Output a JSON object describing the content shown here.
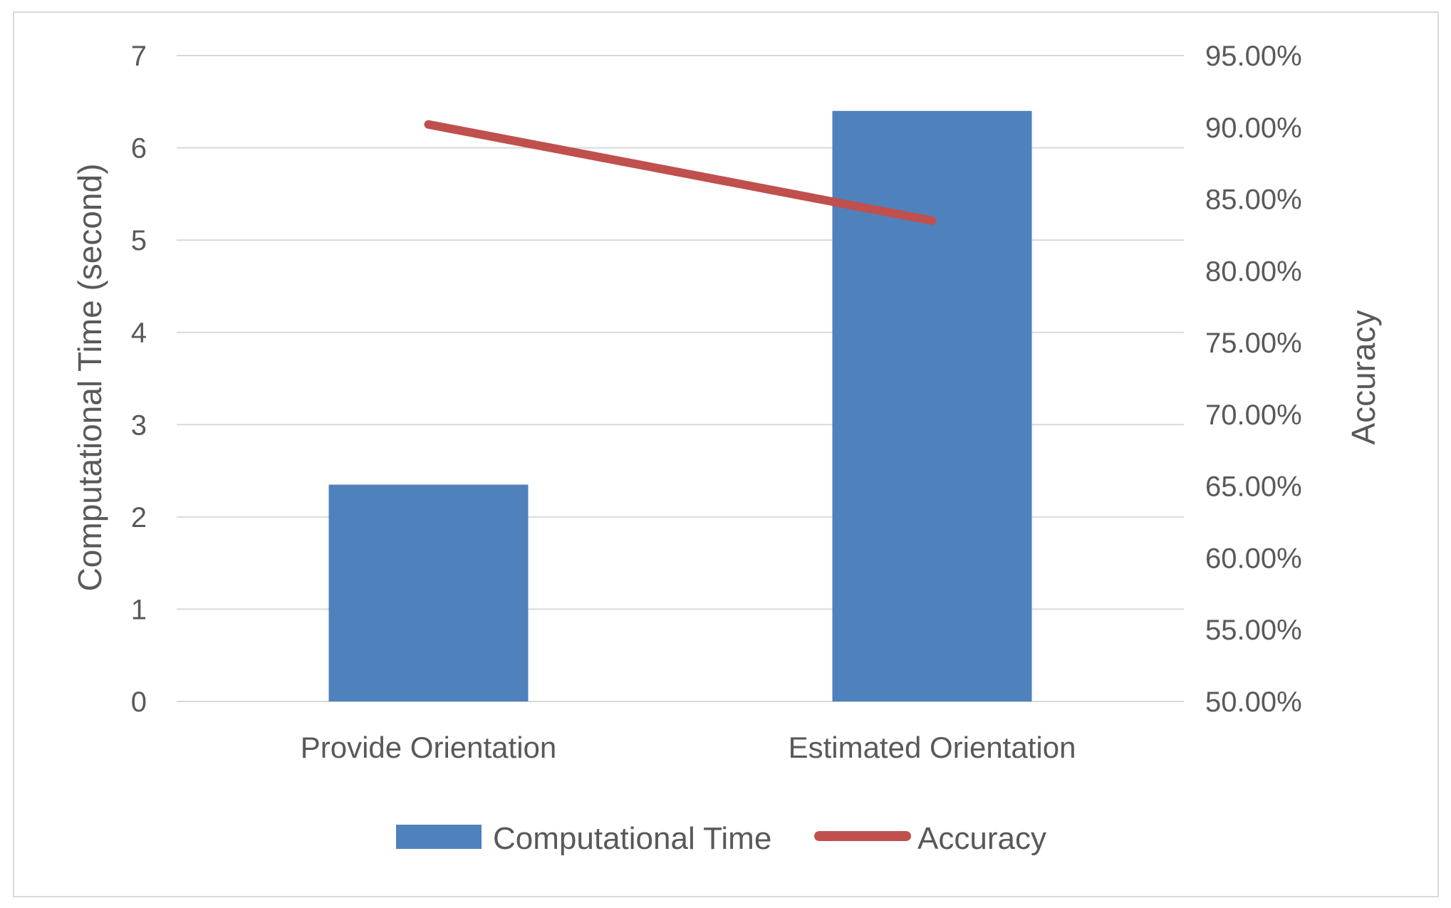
{
  "chart_data": {
    "type": "bar",
    "categories": [
      "Provide Orientation",
      "Estimated Orientation"
    ],
    "series": [
      {
        "name": "Computational Time",
        "type": "bar",
        "axis": "left",
        "values": [
          2.35,
          6.4
        ],
        "color": "#4f81bd"
      },
      {
        "name": "Accuracy",
        "type": "line",
        "axis": "right",
        "values": [
          0.902,
          0.835
        ],
        "color": "#c0504d"
      }
    ],
    "ylabel": "Computational Time (second)",
    "ylabel_right": "Accuracy",
    "ylim": [
      0,
      7
    ],
    "ylim_right": [
      0.5,
      0.95
    ],
    "yticks": [
      "0",
      "1",
      "2",
      "3",
      "4",
      "5",
      "6",
      "7"
    ],
    "yticks_right": [
      "50.00%",
      "55.00%",
      "60.00%",
      "65.00%",
      "70.00%",
      "75.00%",
      "80.00%",
      "85.00%",
      "90.00%",
      "95.00%"
    ],
    "grid": true,
    "legend_position": "bottom",
    "legend": [
      "Computational Time",
      "Accuracy"
    ]
  }
}
